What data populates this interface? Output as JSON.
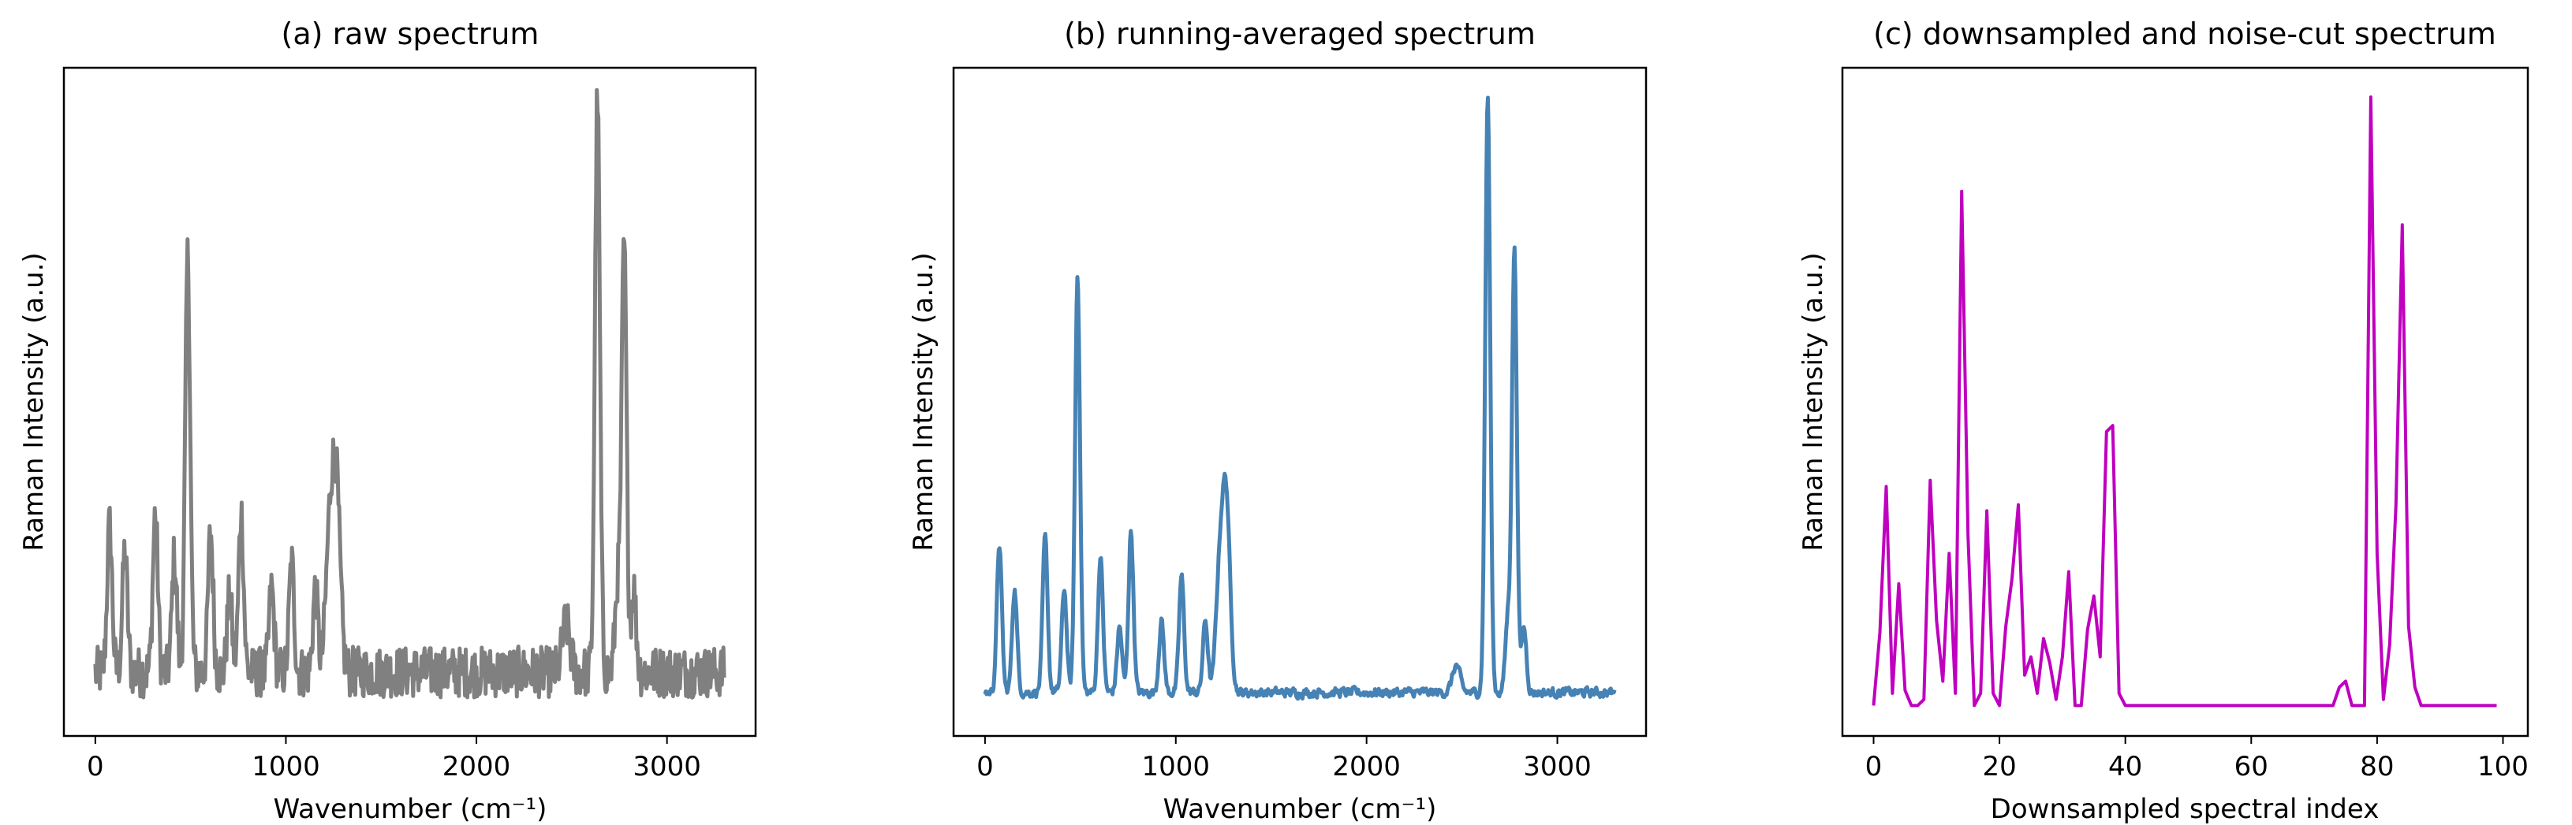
{
  "chart_data": [
    {
      "type": "line",
      "title": "(a) raw spectrum",
      "xlabel": "Wavenumber (cm⁻¹)",
      "ylabel": "Raman Intensity (a.u.)",
      "xlim": [
        -165,
        3465
      ],
      "ylim": [
        0,
        1.045
      ],
      "xticks": [
        "0",
        "1000",
        "2000",
        "3000"
      ],
      "xtick_values": [
        0,
        1000,
        2000,
        3000
      ],
      "yticks": [],
      "grid": false,
      "color": "#808080",
      "x_range": [
        0,
        3300
      ],
      "baseline": 0.1,
      "noise": "high",
      "peaks": [
        {
          "x": 75,
          "y": 0.33
        },
        {
          "x": 155,
          "y": 0.29
        },
        {
          "x": 315,
          "y": 0.35
        },
        {
          "x": 415,
          "y": 0.28
        },
        {
          "x": 485,
          "y": 0.75
        },
        {
          "x": 605,
          "y": 0.32
        },
        {
          "x": 705,
          "y": 0.22
        },
        {
          "x": 765,
          "y": 0.35
        },
        {
          "x": 925,
          "y": 0.23
        },
        {
          "x": 1030,
          "y": 0.27
        },
        {
          "x": 1155,
          "y": 0.23
        },
        {
          "x": 1230,
          "y": 0.31
        },
        {
          "x": 1265,
          "y": 0.38
        },
        {
          "x": 2470,
          "y": 0.175
        },
        {
          "x": 2635,
          "y": 1.0
        },
        {
          "x": 2740,
          "y": 0.23
        },
        {
          "x": 2775,
          "y": 0.77
        },
        {
          "x": 2825,
          "y": 0.23
        }
      ]
    },
    {
      "type": "line",
      "title": "(b) running-averaged spectrum",
      "xlabel": "Wavenumber (cm⁻¹)",
      "ylabel": "Raman Intensity (a.u.)",
      "xlim": [
        -165,
        3465
      ],
      "ylim": [
        0,
        1.045
      ],
      "xticks": [
        "0",
        "1000",
        "2000",
        "3000"
      ],
      "xtick_values": [
        0,
        1000,
        2000,
        3000
      ],
      "yticks": [],
      "grid": false,
      "color": "#4682b4",
      "x_range": [
        0,
        3300
      ],
      "baseline": 0.068,
      "noise": "low",
      "peaks": [
        {
          "x": 75,
          "y": 0.3
        },
        {
          "x": 155,
          "y": 0.23
        },
        {
          "x": 315,
          "y": 0.31
        },
        {
          "x": 415,
          "y": 0.23
        },
        {
          "x": 485,
          "y": 0.72
        },
        {
          "x": 605,
          "y": 0.28
        },
        {
          "x": 705,
          "y": 0.17
        },
        {
          "x": 765,
          "y": 0.32
        },
        {
          "x": 925,
          "y": 0.18
        },
        {
          "x": 1030,
          "y": 0.25
        },
        {
          "x": 1155,
          "y": 0.18
        },
        {
          "x": 1230,
          "y": 0.25
        },
        {
          "x": 1265,
          "y": 0.355
        },
        {
          "x": 2470,
          "y": 0.11
        },
        {
          "x": 2635,
          "y": 1.0
        },
        {
          "x": 2740,
          "y": 0.18
        },
        {
          "x": 2775,
          "y": 0.76
        },
        {
          "x": 2825,
          "y": 0.17
        }
      ]
    },
    {
      "type": "line",
      "title": "(c) downsampled and noise-cut spectrum",
      "xlabel": "Downsampled spectral index",
      "ylabel": "Raman Intensity (a.u.)",
      "xlim": [
        -4.95,
        103.95
      ],
      "ylim": [
        -0.05,
        1.048
      ],
      "xticks": [
        "0",
        "20",
        "40",
        "60",
        "80",
        "100"
      ],
      "xtick_values": [
        0,
        20,
        40,
        60,
        80,
        100
      ],
      "yticks": [],
      "grid": false,
      "color": "#bf00bf",
      "values": [
        0,
        0.12,
        0.36,
        0.02,
        0.2,
        0.025,
        0,
        0,
        0.01,
        0.37,
        0.14,
        0.04,
        0.25,
        0.02,
        0.845,
        0.28,
        0,
        0.02,
        0.32,
        0.02,
        0,
        0.13,
        0.21,
        0.33,
        0.05,
        0.08,
        0.02,
        0.11,
        0.07,
        0.01,
        0.08,
        0.22,
        0,
        0,
        0.125,
        0.18,
        0.08,
        0.45,
        0.46,
        0.02,
        0,
        0,
        0,
        0,
        0,
        0,
        0,
        0,
        0,
        0,
        0,
        0,
        0,
        0,
        0,
        0,
        0,
        0,
        0,
        0,
        0,
        0,
        0,
        0,
        0,
        0,
        0,
        0,
        0,
        0,
        0,
        0,
        0,
        0,
        0.03,
        0.04,
        0,
        0,
        0,
        1.0,
        0.25,
        0.01,
        0.1,
        0.33,
        0.79,
        0.13,
        0.03,
        0,
        0,
        0,
        0,
        0,
        0,
        0,
        0,
        0,
        0,
        0,
        0,
        0
      ]
    }
  ]
}
